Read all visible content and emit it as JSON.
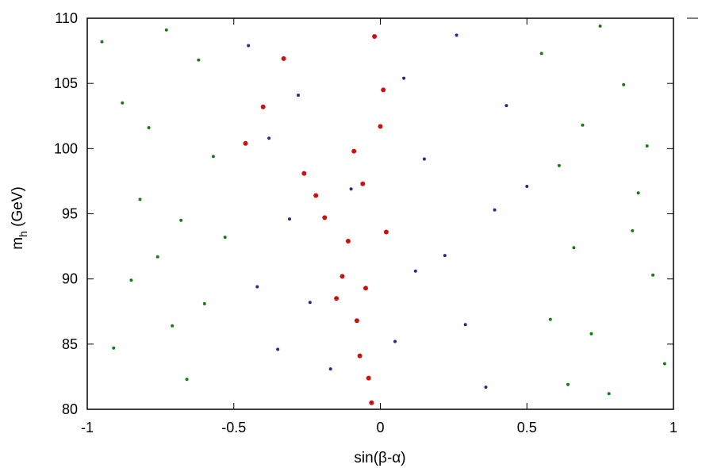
{
  "chart_data": {
    "type": "scatter",
    "title": "",
    "xlabel": "sin(β-α)",
    "ylabel_main": "m",
    "ylabel_sub": "h",
    "ylabel_rest": " (GeV)",
    "xlim": [
      -1,
      1
    ],
    "ylim": [
      80,
      110
    ],
    "xticks": [
      -1,
      -0.5,
      0,
      0.5,
      1
    ],
    "xtick_labels": [
      "-1",
      "-0.5",
      "0",
      "0.5",
      "1"
    ],
    "yticks": [
      80,
      85,
      90,
      95,
      100,
      105,
      110
    ],
    "ytick_labels": [
      "80",
      "85",
      "90",
      "95",
      "100",
      "105",
      "110"
    ],
    "grid": false,
    "legend": "none",
    "series": [
      {
        "color": "#1a7a1a",
        "note_density": "dense scan points covering the full plane outside the central band",
        "points": [
          [
            -0.95,
            108.2
          ],
          [
            -0.88,
            103.5
          ],
          [
            -0.82,
            96.1
          ],
          [
            -0.76,
            91.7
          ],
          [
            -0.71,
            86.4
          ],
          [
            -0.66,
            82.3
          ],
          [
            -0.62,
            106.8
          ],
          [
            -0.57,
            99.4
          ],
          [
            -0.53,
            93.2
          ],
          [
            -0.91,
            84.7
          ],
          [
            -0.85,
            89.9
          ],
          [
            -0.79,
            101.6
          ],
          [
            -0.73,
            109.1
          ],
          [
            -0.68,
            94.5
          ],
          [
            -0.6,
            88.1
          ],
          [
            0.55,
            107.3
          ],
          [
            0.61,
            98.7
          ],
          [
            0.66,
            92.4
          ],
          [
            0.72,
            85.8
          ],
          [
            0.78,
            81.2
          ],
          [
            0.83,
            104.9
          ],
          [
            0.88,
            96.6
          ],
          [
            0.93,
            90.3
          ],
          [
            0.97,
            83.5
          ],
          [
            0.58,
            86.9
          ],
          [
            0.69,
            101.8
          ],
          [
            0.75,
            109.4
          ],
          [
            0.86,
            93.7
          ],
          [
            0.91,
            100.2
          ],
          [
            0.64,
            81.9
          ]
        ]
      },
      {
        "color": "#1c2f80",
        "note_density": "scan points in the band roughly -0.5 < sin(β-α) < 0.55",
        "points": [
          [
            -0.45,
            107.9
          ],
          [
            -0.38,
            100.8
          ],
          [
            -0.31,
            94.6
          ],
          [
            -0.24,
            88.2
          ],
          [
            -0.17,
            83.1
          ],
          [
            -0.1,
            96.9
          ],
          [
            0.08,
            105.4
          ],
          [
            0.15,
            99.2
          ],
          [
            0.22,
            91.8
          ],
          [
            0.29,
            86.5
          ],
          [
            0.36,
            81.7
          ],
          [
            0.43,
            103.3
          ],
          [
            0.5,
            97.1
          ],
          [
            -0.42,
            89.4
          ],
          [
            -0.35,
            84.6
          ],
          [
            0.12,
            90.6
          ],
          [
            0.26,
            108.7
          ],
          [
            0.39,
            95.3
          ],
          [
            -0.28,
            104.1
          ],
          [
            0.05,
            85.2
          ]
        ]
      },
      {
        "color": "#cc1111",
        "note_density": "scan points concentrated near sin(β-α) ≈ 0, spreading toward -0.5 at high mass",
        "points": [
          [
            -0.46,
            100.4
          ],
          [
            -0.4,
            103.2
          ],
          [
            -0.33,
            106.9
          ],
          [
            -0.26,
            98.1
          ],
          [
            -0.19,
            94.7
          ],
          [
            -0.13,
            90.2
          ],
          [
            -0.08,
            86.8
          ],
          [
            -0.04,
            82.4
          ],
          [
            -0.02,
            108.6
          ],
          [
            0.01,
            104.5
          ],
          [
            -0.06,
            97.3
          ],
          [
            -0.11,
            92.9
          ],
          [
            -0.15,
            88.5
          ],
          [
            -0.07,
            84.1
          ],
          [
            0.0,
            101.7
          ],
          [
            -0.22,
            96.4
          ],
          [
            -0.03,
            80.5
          ],
          [
            0.02,
            93.6
          ],
          [
            -0.09,
            99.8
          ],
          [
            -0.05,
            89.3
          ]
        ]
      }
    ]
  }
}
